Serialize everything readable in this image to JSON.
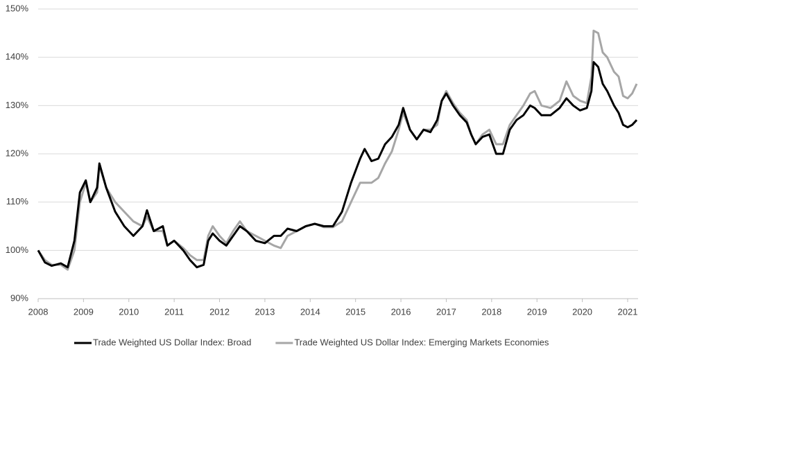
{
  "chart_data": {
    "type": "line",
    "x": [
      2008.0,
      2008.15,
      2008.3,
      2008.5,
      2008.65,
      2008.8,
      2008.92,
      2009.05,
      2009.15,
      2009.3,
      2009.35,
      2009.5,
      2009.7,
      2009.9,
      2010.1,
      2010.3,
      2010.4,
      2010.55,
      2010.75,
      2010.85,
      2011.0,
      2011.2,
      2011.35,
      2011.5,
      2011.65,
      2011.75,
      2011.85,
      2012.0,
      2012.15,
      2012.3,
      2012.45,
      2012.6,
      2012.8,
      2013.0,
      2013.2,
      2013.35,
      2013.5,
      2013.7,
      2013.9,
      2014.1,
      2014.3,
      2014.5,
      2014.7,
      2014.9,
      2015.1,
      2015.2,
      2015.35,
      2015.5,
      2015.65,
      2015.8,
      2015.95,
      2016.05,
      2016.2,
      2016.35,
      2016.5,
      2016.65,
      2016.8,
      2016.9,
      2017.0,
      2017.15,
      2017.3,
      2017.45,
      2017.55,
      2017.65,
      2017.8,
      2017.95,
      2018.1,
      2018.25,
      2018.4,
      2018.55,
      2018.7,
      2018.85,
      2018.95,
      2019.1,
      2019.3,
      2019.5,
      2019.65,
      2019.8,
      2019.95,
      2020.1,
      2020.2,
      2020.25,
      2020.35,
      2020.45,
      2020.55,
      2020.7,
      2020.8,
      2020.9,
      2021.0,
      2021.1,
      2021.2
    ],
    "series": [
      {
        "name": "Trade Weighted US Dollar Index: Broad",
        "color": "#000000",
        "values": [
          100,
          97.5,
          96.8,
          97.3,
          96.5,
          102,
          112,
          114.5,
          110,
          113,
          118,
          113,
          108,
          105,
          103,
          105,
          108.3,
          104,
          105,
          101,
          102,
          100,
          98,
          96.5,
          97,
          102,
          103.5,
          102,
          101,
          103,
          105,
          104,
          102,
          101.5,
          103,
          103,
          104.5,
          104,
          105,
          105.5,
          105,
          105,
          108,
          114,
          119,
          121,
          118.5,
          119,
          122,
          123.5,
          126,
          129.5,
          125,
          123,
          125,
          124.5,
          127,
          131,
          132.5,
          130,
          128,
          126.5,
          124,
          122,
          123.5,
          124,
          120,
          120,
          125,
          127,
          128,
          130,
          129.5,
          128,
          128,
          129.5,
          131.5,
          130,
          129,
          129.5,
          133,
          139,
          138,
          134.5,
          133,
          130,
          128.5,
          126,
          125.5,
          126,
          127
        ]
      },
      {
        "name": "Trade Weighted US Dollar Index: Emerging Markets Economies",
        "color": "#a6a6a6",
        "values": [
          100,
          98,
          97,
          97,
          96,
          100,
          110,
          114,
          110,
          112,
          117.5,
          113,
          110,
          108,
          106,
          105,
          107,
          104,
          104,
          101,
          102,
          100.5,
          99,
          98,
          98,
          103,
          105,
          103,
          101.5,
          104,
          106,
          104,
          103,
          102,
          101,
          100.5,
          103,
          104,
          105,
          105.5,
          104.8,
          104.8,
          106,
          110,
          114,
          114,
          114,
          115,
          118,
          120.5,
          125,
          128.5,
          125,
          123,
          125,
          125,
          126,
          131,
          133,
          130.5,
          128.5,
          127,
          124,
          122,
          124,
          125,
          122,
          122,
          126,
          128,
          130,
          132.5,
          133,
          130,
          129.5,
          131,
          135,
          132,
          131,
          130.5,
          136,
          145.5,
          145,
          141,
          140,
          137,
          136,
          132,
          131.5,
          132.5,
          134.5
        ]
      }
    ],
    "xlim": [
      2008,
      2021.23
    ],
    "xticks": [
      2008,
      2009,
      2010,
      2011,
      2012,
      2013,
      2014,
      2015,
      2016,
      2017,
      2018,
      2019,
      2020,
      2021
    ],
    "ylim": [
      90,
      150
    ],
    "yticks": [
      {
        "value": 90,
        "label": "90%"
      },
      {
        "value": 100,
        "label": "100%"
      },
      {
        "value": 110,
        "label": "110%"
      },
      {
        "value": 120,
        "label": "120%"
      },
      {
        "value": 130,
        "label": "130%"
      },
      {
        "value": 140,
        "label": "140%"
      },
      {
        "value": 150,
        "label": "150%"
      }
    ],
    "grid": true,
    "legend": "bottom"
  }
}
